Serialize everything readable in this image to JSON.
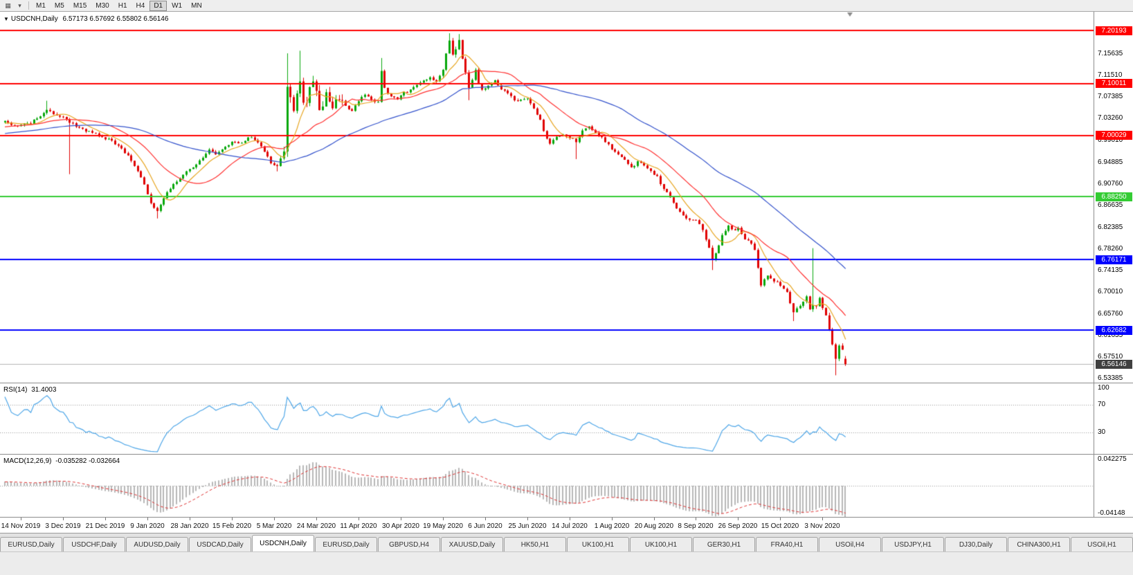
{
  "toolbar": {
    "icon_chart": "▦",
    "icon_caret": "▾",
    "timeframes": [
      "M1",
      "M5",
      "M15",
      "M30",
      "H1",
      "H4",
      "D1",
      "W1",
      "MN"
    ],
    "active": "D1"
  },
  "chart": {
    "marker": "▼",
    "title": "USDCNH,Daily",
    "ohlc_display": "6.57173 6.57692 6.55802 6.56146"
  },
  "rsi": {
    "label": "RSI(14)",
    "value": "31.4003",
    "scale_labels": [
      {
        "v": 100,
        "text": "100"
      },
      {
        "v": 70,
        "text": "70"
      },
      {
        "v": 30,
        "text": "30"
      }
    ]
  },
  "macd": {
    "label": "MACD(12,26,9)",
    "values": "-0.035282 -0.032664",
    "scale_top": "0.042275",
    "scale_bottom": "-0.04148"
  },
  "tabs": {
    "active_index": 4,
    "items": [
      "EURUSD,Daily",
      "USDCHF,Daily",
      "AUDUSD,Daily",
      "USDCAD,Daily",
      "USDCNH,Daily",
      "EURUSD,Daily",
      "GBPUSD,H4",
      "XAUUSD,Daily",
      "HK50,H1",
      "UK100,H1",
      "UK100,H1",
      "GER30,H1",
      "FRA40,H1",
      "USOil,H4",
      "USDJPY,H1",
      "DJ30,Daily",
      "CHINA300,H1",
      "USOil,H1"
    ]
  },
  "price_axis": {
    "ticks": [
      "7.15635",
      "7.11510",
      "7.07385",
      "7.03260",
      "6.99010",
      "6.94885",
      "6.90760",
      "6.86635",
      "6.82385",
      "6.78260",
      "6.74135",
      "6.70010",
      "6.65760",
      "6.61635",
      "6.57510",
      "6.53385"
    ],
    "tick_values": [
      7.15635,
      7.1151,
      7.07385,
      7.0326,
      6.9901,
      6.94885,
      6.9076,
      6.86635,
      6.82385,
      6.7826,
      6.74135,
      6.7001,
      6.6576,
      6.61635,
      6.5751,
      6.53385
    ]
  },
  "time_axis": {
    "labels": [
      "14 Nov 2019",
      "3 Dec 2019",
      "21 Dec 2019",
      "9 Jan 2020",
      "28 Jan 2020",
      "15 Feb 2020",
      "5 Mar 2020",
      "24 Mar 2020",
      "11 Apr 2020",
      "30 Apr 2020",
      "19 May 2020",
      "6 Jun 2020",
      "25 Jun 2020",
      "14 Jul 2020",
      "1 Aug 2020",
      "20 Aug 2020",
      "8 Sep 2020",
      "26 Sep 2020",
      "15 Oct 2020",
      "3 Nov 2020"
    ],
    "first_label_bar": 5,
    "bars_per_label": 13
  },
  "chart_data": {
    "type": "candlestick",
    "symbol": "USDCNH",
    "timeframe": "Daily",
    "bars": 260,
    "first_bar_x": 6.5,
    "bar_spacing": 4.69,
    "y_ref": {
      "p": 7.20193,
      "y": 27,
      "scale": 752.9
    },
    "last_ohlc": {
      "open": 6.57173,
      "high": 6.57692,
      "low": 6.55802,
      "close": 6.56146
    },
    "levels": [
      {
        "price": 7.20193,
        "label": "7.20193",
        "color": "#FF0000"
      },
      {
        "price": 7.10011,
        "label": "7.10011",
        "color": "#FF0000"
      },
      {
        "price": 7.00029,
        "label": "7.00029",
        "color": "#FF0000"
      },
      {
        "price": 6.8825,
        "label": "6.88250",
        "color": "#33CC33"
      },
      {
        "price": 6.76171,
        "label": "6.76171",
        "color": "#0000FF"
      },
      {
        "price": 6.62682,
        "label": "6.62682",
        "color": "#0000FF"
      }
    ],
    "bid": {
      "price": 6.56146,
      "label": "6.56146",
      "badge_color": "#3F3F3F",
      "line_color": "#B4B4B4"
    },
    "colors": {
      "up": "#07A80B",
      "down": "#E00000",
      "ma_fast": "#E8A621",
      "ma_mid": "#FF3030",
      "ma_slow": "#3352CC",
      "rsi": "#4DA6E8",
      "macd_hist": "#B8B8B8",
      "macd_signal": "#E03030",
      "grid_dotted": "#999999",
      "shift_marker": "#8C8C8C"
    },
    "ma": [
      {
        "period": 8,
        "color": "#E8A621"
      },
      {
        "period": 21,
        "color": "#FF3030"
      },
      {
        "period": 55,
        "color": "#3352CC"
      }
    ],
    "rsi_levels": [
      70,
      30
    ],
    "macd_range": [
      -0.0445,
      0.0445
    ],
    "base_vol": 0.0045,
    "vol_ranges": [
      [
        84,
        104,
        0.015
      ],
      [
        135,
        143,
        0.008
      ],
      [
        215,
        221,
        0.006
      ],
      [
        249,
        259,
        0.007
      ]
    ],
    "close_anchors": [
      [
        -60,
        6.975
      ],
      [
        -35,
        7.0
      ],
      [
        -15,
        7.012
      ],
      [
        0,
        7.026
      ],
      [
        4,
        7.02
      ],
      [
        8,
        7.024
      ],
      [
        11,
        7.038
      ],
      [
        13,
        7.05
      ],
      [
        15,
        7.042
      ],
      [
        17,
        7.035
      ],
      [
        19,
        7.032
      ],
      [
        21,
        7.022
      ],
      [
        24,
        7.012
      ],
      [
        27,
        7.004
      ],
      [
        30,
        6.998
      ],
      [
        33,
        6.99
      ],
      [
        36,
        6.976
      ],
      [
        39,
        6.952
      ],
      [
        41,
        6.93
      ],
      [
        43,
        6.905
      ],
      [
        45,
        6.872
      ],
      [
        47,
        6.854
      ],
      [
        48,
        6.87
      ],
      [
        50,
        6.89
      ],
      [
        52,
        6.908
      ],
      [
        55,
        6.924
      ],
      [
        58,
        6.94
      ],
      [
        61,
        6.958
      ],
      [
        63,
        6.972
      ],
      [
        65,
        6.963
      ],
      [
        68,
        6.978
      ],
      [
        70,
        6.988
      ],
      [
        72,
        6.984
      ],
      [
        74,
        6.992
      ],
      [
        76,
        6.997
      ],
      [
        78,
        6.985
      ],
      [
        80,
        6.97
      ],
      [
        82,
        6.948
      ],
      [
        84,
        6.94
      ],
      [
        86,
        6.962
      ],
      [
        87,
        7.092
      ],
      [
        88,
        7.072
      ],
      [
        89,
        7.045
      ],
      [
        90,
        7.088
      ],
      [
        91,
        7.112
      ],
      [
        92,
        7.068
      ],
      [
        93,
        7.056
      ],
      [
        94,
        7.095
      ],
      [
        95,
        7.103
      ],
      [
        96,
        7.082
      ],
      [
        97,
        7.042
      ],
      [
        98,
        7.062
      ],
      [
        99,
        7.085
      ],
      [
        100,
        7.063
      ],
      [
        101,
        7.055
      ],
      [
        103,
        7.074
      ],
      [
        105,
        7.058
      ],
      [
        107,
        7.048
      ],
      [
        109,
        7.068
      ],
      [
        111,
        7.08
      ],
      [
        113,
        7.07
      ],
      [
        115,
        7.064
      ],
      [
        116,
        7.122
      ],
      [
        117,
        7.09
      ],
      [
        119,
        7.077
      ],
      [
        121,
        7.07
      ],
      [
        123,
        7.082
      ],
      [
        126,
        7.092
      ],
      [
        129,
        7.108
      ],
      [
        131,
        7.112
      ],
      [
        133,
        7.105
      ],
      [
        135,
        7.125
      ],
      [
        136,
        7.162
      ],
      [
        137,
        7.183
      ],
      [
        138,
        7.158
      ],
      [
        139,
        7.168
      ],
      [
        140,
        7.184
      ],
      [
        141,
        7.15
      ],
      [
        142,
        7.118
      ],
      [
        143,
        7.094
      ],
      [
        144,
        7.108
      ],
      [
        145,
        7.126
      ],
      [
        146,
        7.1
      ],
      [
        147,
        7.086
      ],
      [
        149,
        7.098
      ],
      [
        151,
        7.106
      ],
      [
        153,
        7.09
      ],
      [
        155,
        7.08
      ],
      [
        157,
        7.07
      ],
      [
        159,
        7.067
      ],
      [
        161,
        7.07
      ],
      [
        163,
        7.052
      ],
      [
        165,
        7.03
      ],
      [
        166,
        7.008
      ],
      [
        168,
        6.984
      ],
      [
        170,
        6.996
      ],
      [
        172,
        7.004
      ],
      [
        174,
        6.996
      ],
      [
        176,
        6.988
      ],
      [
        178,
        7.008
      ],
      [
        180,
        7.016
      ],
      [
        182,
        7.004
      ],
      [
        184,
        6.996
      ],
      [
        187,
        6.976
      ],
      [
        189,
        6.962
      ],
      [
        191,
        6.952
      ],
      [
        193,
        6.938
      ],
      [
        195,
        6.95
      ],
      [
        197,
        6.944
      ],
      [
        199,
        6.932
      ],
      [
        201,
        6.92
      ],
      [
        203,
        6.898
      ],
      [
        205,
        6.882
      ],
      [
        207,
        6.862
      ],
      [
        209,
        6.847
      ],
      [
        211,
        6.84
      ],
      [
        213,
        6.836
      ],
      [
        215,
        6.822
      ],
      [
        216,
        6.803
      ],
      [
        217,
        6.783
      ],
      [
        218,
        6.763
      ],
      [
        219,
        6.776
      ],
      [
        220,
        6.792
      ],
      [
        221,
        6.812
      ],
      [
        223,
        6.827
      ],
      [
        225,
        6.817
      ],
      [
        226,
        6.822
      ],
      [
        228,
        6.803
      ],
      [
        230,
        6.793
      ],
      [
        231,
        6.783
      ],
      [
        233,
        6.713
      ],
      [
        235,
        6.732
      ],
      [
        237,
        6.722
      ],
      [
        239,
        6.712
      ],
      [
        241,
        6.698
      ],
      [
        243,
        6.662
      ],
      [
        245,
        6.672
      ],
      [
        247,
        6.692
      ],
      [
        248,
        6.668
      ],
      [
        249,
        6.678
      ],
      [
        250,
        6.672
      ],
      [
        251,
        6.685
      ],
      [
        252,
        6.672
      ],
      [
        253,
        6.655
      ],
      [
        254,
        6.625
      ],
      [
        255,
        6.6
      ],
      [
        256,
        6.575
      ],
      [
        257,
        6.6
      ],
      [
        258,
        6.586
      ],
      [
        259,
        6.5615
      ]
    ],
    "spikes": [
      {
        "i": 13,
        "h": 7.067
      },
      {
        "i": 20,
        "l": 6.926
      },
      {
        "i": 47,
        "l": 6.841
      },
      {
        "i": 87,
        "h": 7.158
      },
      {
        "i": 91,
        "h": 7.163
      },
      {
        "i": 116,
        "h": 7.149
      },
      {
        "i": 137,
        "h": 7.1965
      },
      {
        "i": 140,
        "h": 7.195
      },
      {
        "i": 143,
        "l": 7.068
      },
      {
        "i": 176,
        "l": 6.955
      },
      {
        "i": 218,
        "l": 6.742
      },
      {
        "i": 243,
        "l": 6.644
      },
      {
        "i": 249,
        "h": 6.784
      },
      {
        "i": 256,
        "l": 6.54
      }
    ]
  }
}
